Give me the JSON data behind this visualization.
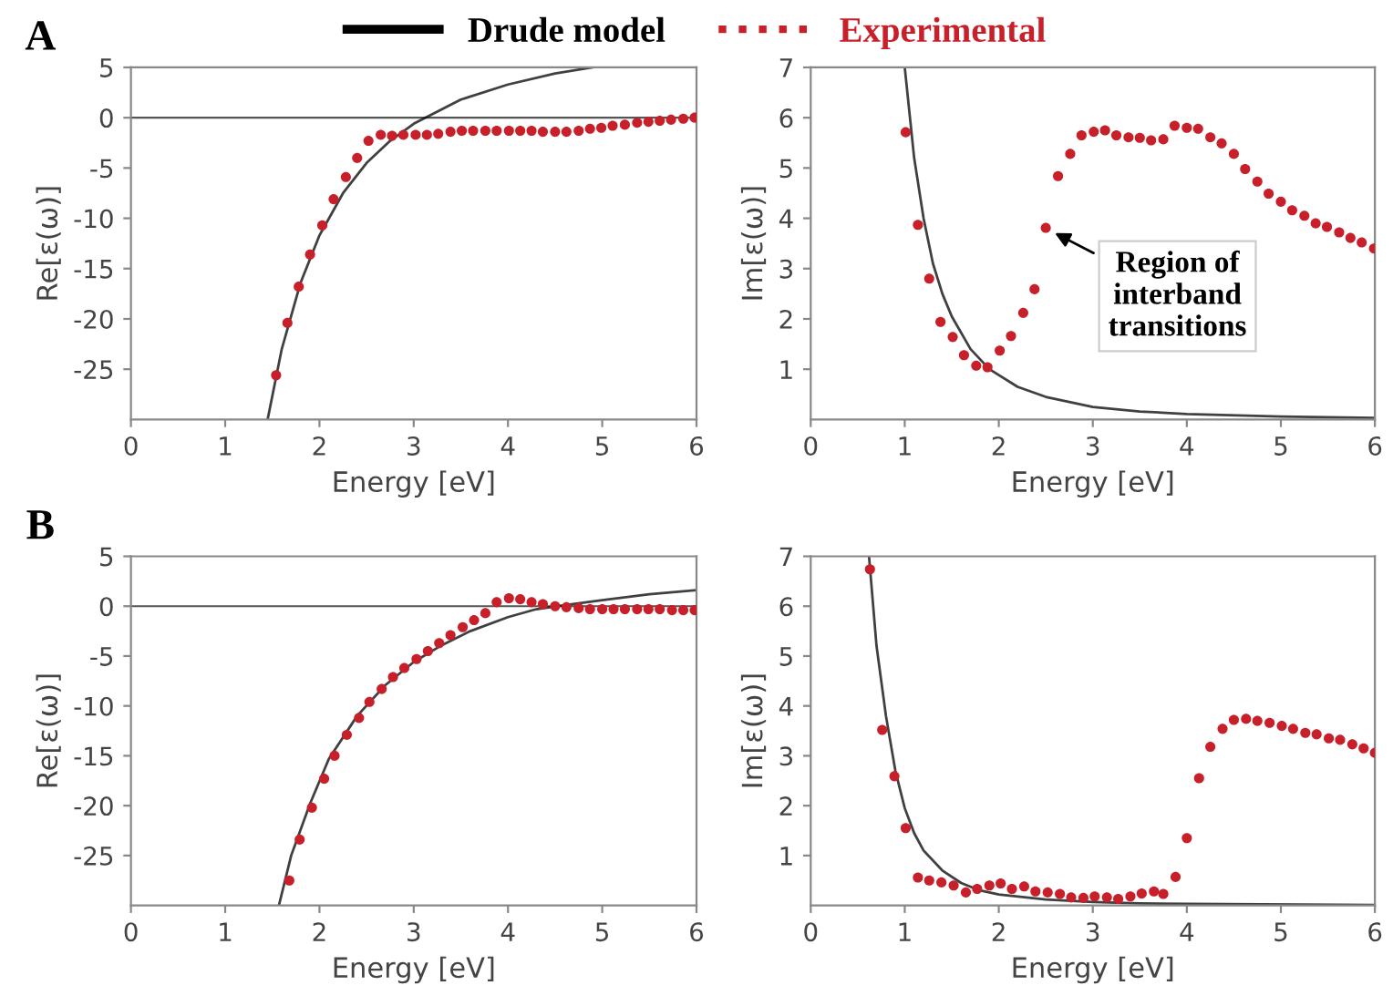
{
  "chart_data": [
    {
      "type": "scatter",
      "title": "A",
      "xlabel": "Energy [eV]",
      "ylabel": "Re[ε(ω)]",
      "xlim": [
        0,
        6
      ],
      "xticks": [
        0,
        1,
        2,
        3,
        4,
        5,
        6
      ],
      "ylim": [
        -30,
        5
      ],
      "yticks": [
        -25,
        -20,
        -15,
        -10,
        -5,
        0,
        5
      ],
      "legend": "top",
      "grid": false,
      "ref_lines": [
        {
          "axis": "y",
          "value": 0,
          "color": "#555555",
          "line_style": "solid"
        }
      ],
      "series": [
        {
          "name": "Drude model",
          "type": "line",
          "color": "#000000",
          "line_style": "solid",
          "marker": "none",
          "x": [
            1.45,
            1.6,
            1.8,
            2.0,
            2.25,
            2.5,
            2.75,
            3.0,
            3.5,
            4.0,
            4.5,
            4.9
          ],
          "values": [
            -30,
            -23,
            -16.4,
            -11.7,
            -7.5,
            -4.5,
            -2.3,
            -0.6,
            1.8,
            3.3,
            4.4,
            5
          ]
        },
        {
          "name": "Experimental",
          "color": "#c8202a",
          "marker": "circle",
          "line_style": "dotted",
          "x": [
            1.54,
            1.66,
            1.78,
            1.9,
            2.03,
            2.15,
            2.28,
            2.4,
            2.52,
            2.65,
            2.77,
            2.89,
            3.02,
            3.14,
            3.26,
            3.39,
            3.51,
            3.63,
            3.76,
            3.88,
            4.01,
            4.13,
            4.25,
            4.37,
            4.5,
            4.62,
            4.75,
            4.87,
            4.99,
            5.11,
            5.24,
            5.37,
            5.49,
            5.61,
            5.73,
            5.86,
            5.98
          ],
          "values": [
            -25.6,
            -20.4,
            -16.8,
            -13.6,
            -10.7,
            -8.1,
            -5.9,
            -4.0,
            -2.3,
            -1.7,
            -1.8,
            -1.7,
            -1.7,
            -1.7,
            -1.6,
            -1.4,
            -1.3,
            -1.3,
            -1.3,
            -1.3,
            -1.3,
            -1.3,
            -1.3,
            -1.4,
            -1.4,
            -1.4,
            -1.3,
            -1.1,
            -1.0,
            -0.8,
            -0.7,
            -0.5,
            -0.4,
            -0.3,
            -0.2,
            -0.1,
            0.0
          ]
        }
      ]
    },
    {
      "type": "scatter",
      "xlabel": "Energy [eV]",
      "ylabel": "Im[ε(ω)]",
      "xlim": [
        0,
        6
      ],
      "xticks": [
        0,
        1,
        2,
        3,
        4,
        5,
        6
      ],
      "ylim": [
        0,
        7
      ],
      "yticks": [
        1,
        2,
        3,
        4,
        5,
        6,
        7
      ],
      "grid": false,
      "annotations": [
        {
          "text": "Region of\ninterband\ntransitions",
          "x": 2.5,
          "y": 3.8
        }
      ],
      "series": [
        {
          "type": "line",
          "color": "#000000",
          "line_style": "solid",
          "marker": "none",
          "x": [
            1.0,
            1.1,
            1.2,
            1.3,
            1.4,
            1.5,
            1.7,
            1.9,
            2.2,
            2.5,
            3.0,
            3.5,
            4.0,
            5.0,
            6.0
          ],
          "values": [
            7,
            5.2,
            4.0,
            3.1,
            2.5,
            2.05,
            1.4,
            1.0,
            0.65,
            0.45,
            0.25,
            0.16,
            0.11,
            0.06,
            0.03
          ]
        },
        {
          "color": "#c8202a",
          "marker": "circle",
          "x": [
            1.01,
            1.14,
            1.26,
            1.38,
            1.51,
            1.63,
            1.76,
            1.88,
            2.01,
            2.13,
            2.26,
            2.38,
            2.5,
            2.63,
            2.76,
            2.88,
            3.01,
            3.13,
            3.25,
            3.38,
            3.5,
            3.62,
            3.75,
            3.87,
            4.0,
            4.12,
            4.25,
            4.37,
            4.5,
            4.62,
            4.75,
            4.87,
            5.0,
            5.12,
            5.25,
            5.37,
            5.49,
            5.62,
            5.74,
            5.86,
            5.99
          ],
          "values": [
            5.71,
            3.87,
            2.8,
            1.94,
            1.64,
            1.28,
            1.07,
            1.04,
            1.37,
            1.66,
            2.12,
            2.59,
            3.81,
            4.84,
            5.28,
            5.65,
            5.72,
            5.75,
            5.65,
            5.61,
            5.6,
            5.55,
            5.57,
            5.84,
            5.8,
            5.78,
            5.61,
            5.49,
            5.28,
            4.98,
            4.73,
            4.49,
            4.33,
            4.16,
            4.05,
            3.9,
            3.83,
            3.72,
            3.61,
            3.52,
            3.4
          ]
        }
      ]
    },
    {
      "type": "scatter",
      "title": "B",
      "xlabel": "Energy [eV]",
      "ylabel": "Re[ε(ω)]",
      "xlim": [
        0,
        6
      ],
      "xticks": [
        0,
        1,
        2,
        3,
        4,
        5,
        6
      ],
      "ylim": [
        -30,
        5
      ],
      "yticks": [
        -25,
        -20,
        -15,
        -10,
        -5,
        0,
        5
      ],
      "grid": false,
      "ref_lines": [
        {
          "axis": "y",
          "value": 0,
          "color": "#555555",
          "line_style": "solid"
        }
      ],
      "series": [
        {
          "type": "line",
          "color": "#000000",
          "line_style": "solid",
          "marker": "none",
          "x": [
            1.57,
            1.7,
            1.9,
            2.1,
            2.4,
            2.7,
            3.0,
            3.3,
            3.6,
            4.0,
            4.3,
            4.6,
            5.0,
            5.5,
            6.0
          ],
          "values": [
            -30,
            -25,
            -19.8,
            -15.3,
            -11,
            -7.9,
            -5.6,
            -3.9,
            -2.5,
            -1.1,
            -0.3,
            0.1,
            0.6,
            1.2,
            1.6
          ]
        },
        {
          "color": "#c8202a",
          "marker": "circle",
          "x": [
            1.68,
            1.79,
            1.92,
            2.05,
            2.16,
            2.29,
            2.42,
            2.53,
            2.66,
            2.78,
            2.9,
            3.03,
            3.15,
            3.27,
            3.39,
            3.52,
            3.64,
            3.76,
            3.88,
            4.01,
            4.13,
            4.25,
            4.37,
            4.5,
            4.62,
            4.75,
            4.87,
            5.0,
            5.12,
            5.24,
            5.37,
            5.49,
            5.61,
            5.74,
            5.86,
            5.98
          ],
          "values": [
            -27.5,
            -23.4,
            -20.2,
            -17.3,
            -15.0,
            -12.9,
            -11.2,
            -9.6,
            -8.3,
            -7.1,
            -6.2,
            -5.3,
            -4.5,
            -3.7,
            -2.9,
            -2.1,
            -1.4,
            -0.7,
            0.4,
            0.8,
            0.7,
            0.4,
            0.2,
            0.0,
            -0.1,
            -0.2,
            -0.3,
            -0.3,
            -0.3,
            -0.3,
            -0.3,
            -0.3,
            -0.3,
            -0.4,
            -0.4,
            -0.4
          ]
        }
      ]
    },
    {
      "type": "scatter",
      "xlabel": "Energy [eV]",
      "ylabel": "Im[ε(ω)]",
      "xlim": [
        0,
        6
      ],
      "xticks": [
        0,
        1,
        2,
        3,
        4,
        5,
        6
      ],
      "ylim": [
        0,
        7
      ],
      "yticks": [
        1,
        2,
        3,
        4,
        5,
        6,
        7
      ],
      "grid": false,
      "series": [
        {
          "type": "line",
          "color": "#000000",
          "line_style": "solid",
          "marker": "none",
          "x": [
            0.62,
            0.7,
            0.8,
            0.9,
            1.0,
            1.1,
            1.2,
            1.4,
            1.6,
            1.8,
            2.0,
            2.5,
            3.0,
            3.5,
            4.0,
            6.0
          ],
          "values": [
            7,
            5.2,
            3.8,
            2.7,
            1.95,
            1.45,
            1.1,
            0.7,
            0.45,
            0.3,
            0.22,
            0.12,
            0.07,
            0.04,
            0.03,
            0.01
          ]
        },
        {
          "color": "#c8202a",
          "marker": "circle",
          "x": [
            0.63,
            0.76,
            0.89,
            1.01,
            1.14,
            1.26,
            1.39,
            1.52,
            1.65,
            1.77,
            1.9,
            2.02,
            2.14,
            2.27,
            2.39,
            2.52,
            2.65,
            2.77,
            2.9,
            3.02,
            3.15,
            3.27,
            3.4,
            3.52,
            3.65,
            3.75,
            3.88,
            4.0,
            4.13,
            4.25,
            4.38,
            4.5,
            4.63,
            4.75,
            4.88,
            5.01,
            5.13,
            5.26,
            5.38,
            5.51,
            5.63,
            5.76,
            5.88,
            6.0
          ],
          "values": [
            6.74,
            3.52,
            2.59,
            1.55,
            0.56,
            0.5,
            0.46,
            0.4,
            0.26,
            0.33,
            0.4,
            0.44,
            0.33,
            0.38,
            0.28,
            0.26,
            0.23,
            0.16,
            0.15,
            0.18,
            0.16,
            0.13,
            0.18,
            0.24,
            0.28,
            0.23,
            0.57,
            1.35,
            2.55,
            3.18,
            3.54,
            3.72,
            3.74,
            3.7,
            3.66,
            3.6,
            3.54,
            3.46,
            3.43,
            3.35,
            3.32,
            3.23,
            3.15,
            3.06
          ]
        }
      ]
    }
  ]
}
